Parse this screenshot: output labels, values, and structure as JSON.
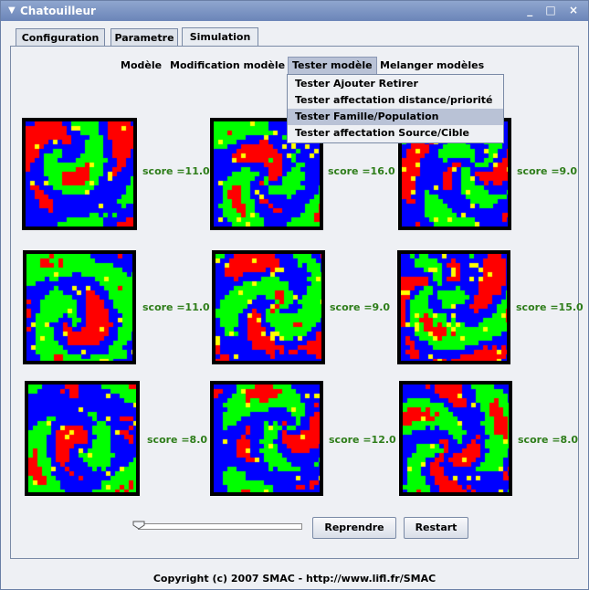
{
  "window": {
    "title": "Chatouilleur",
    "controls": "_ □ ×"
  },
  "tabs": [
    {
      "label": "Configuration",
      "selected": false
    },
    {
      "label": "Parametre",
      "selected": false
    },
    {
      "label": "Simulation",
      "selected": true
    }
  ],
  "menubar": [
    {
      "label": "Modèle",
      "open": false
    },
    {
      "label": "Modification modèle",
      "open": false
    },
    {
      "label": "Tester modèle",
      "open": true
    },
    {
      "label": "Melanger modèles",
      "open": false
    }
  ],
  "dropdown": {
    "items": [
      {
        "label": "Tester Ajouter Retirer",
        "highlighted": false
      },
      {
        "label": "Tester affectation distance/priorité",
        "highlighted": false
      },
      {
        "label": "Tester Famille/Population",
        "highlighted": true
      },
      {
        "label": "Tester affectation Source/Cible",
        "highlighted": false
      }
    ]
  },
  "colors": {
    "red": "#ff0000",
    "green": "#00ff00",
    "blue": "#0000ff",
    "yellow": "#ffff00",
    "score_text": "#2e7d1a"
  },
  "simulations": [
    {
      "score": "score =11.0"
    },
    {
      "score": "score =16.0"
    },
    {
      "score": "score =9.0"
    },
    {
      "score": "score =11.0"
    },
    {
      "score": "score =9.0"
    },
    {
      "score": "score =15.0"
    },
    {
      "score": "score =8.0"
    },
    {
      "score": "score =12.0"
    },
    {
      "score": "score =8.0"
    }
  ],
  "controls": {
    "slider_value": 0,
    "reprendre_label": "Reprendre",
    "restart_label": "Restart"
  },
  "footer": {
    "copyright": "Copyright (c) 2007 SMAC - http://www.lifl.fr/SMAC"
  }
}
